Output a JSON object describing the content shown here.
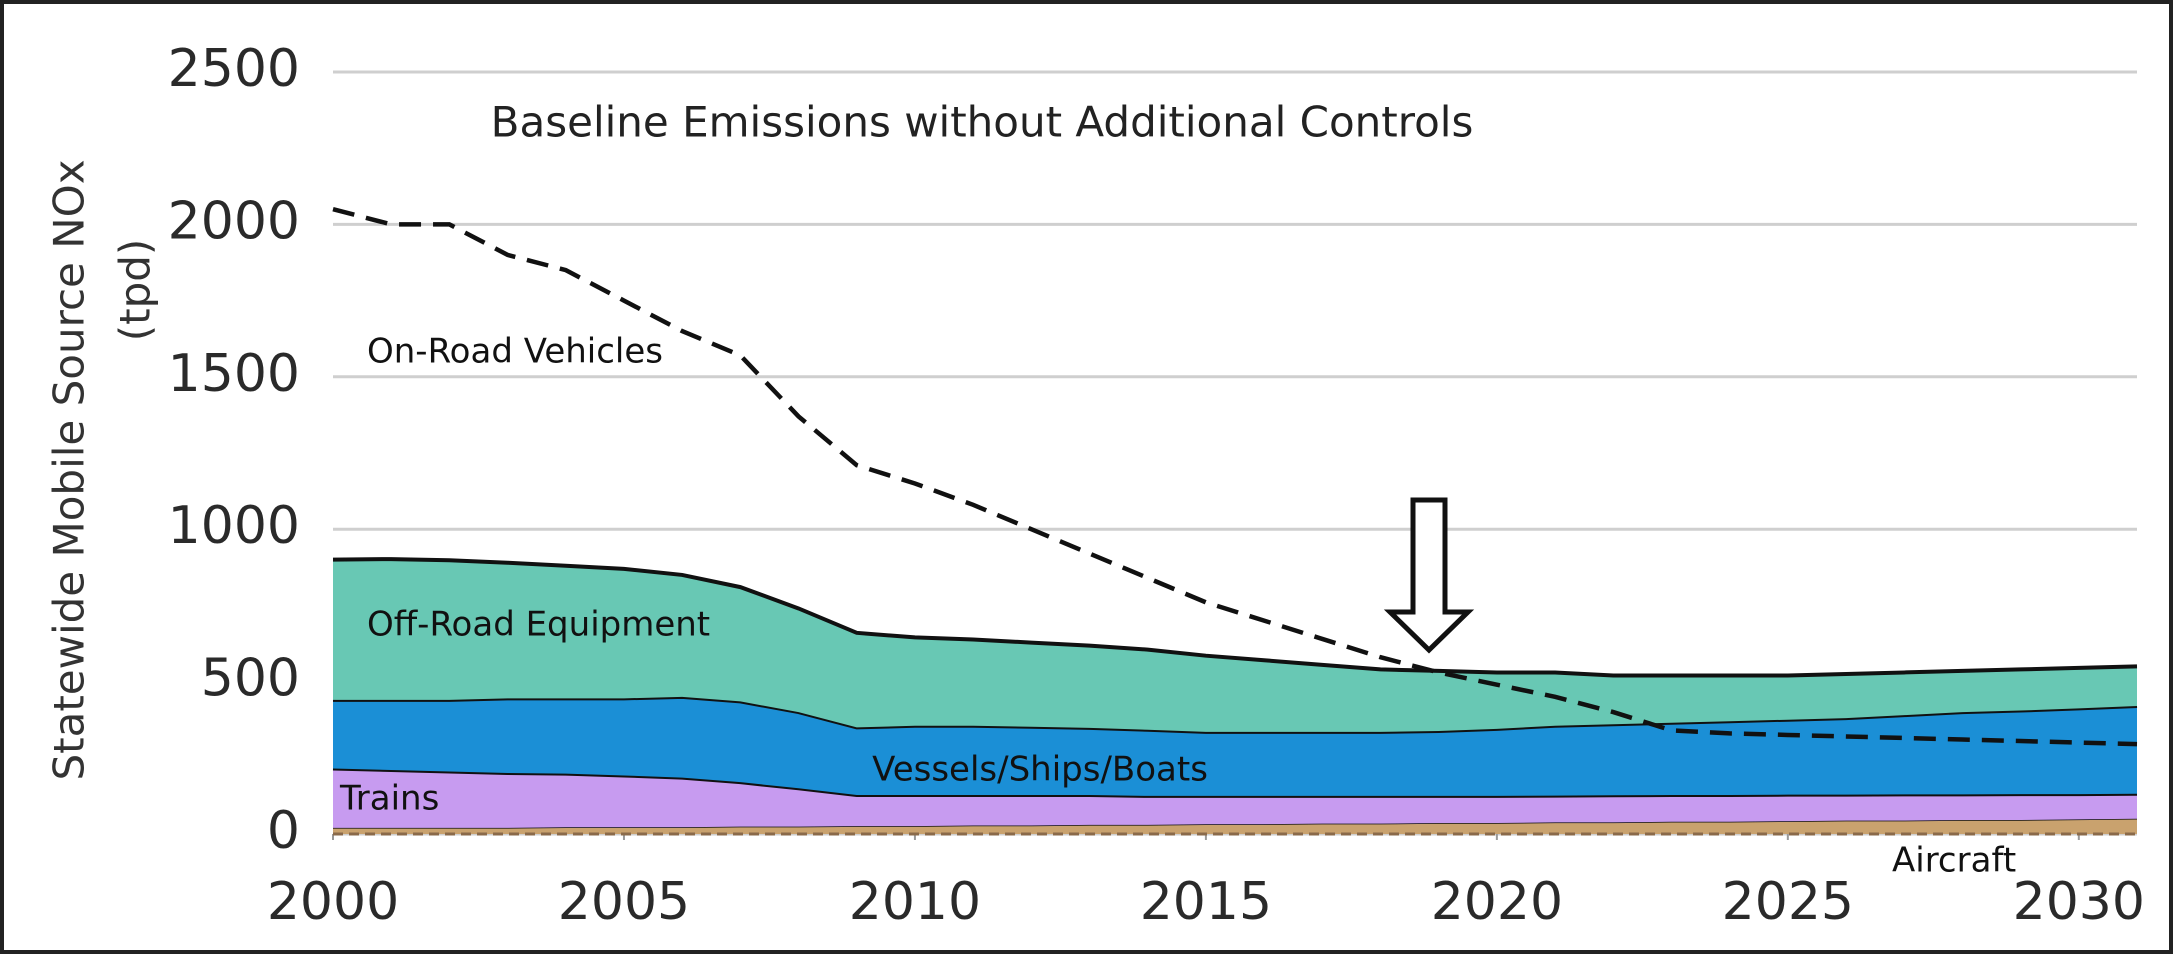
{
  "chart_data": {
    "type": "stacked-area",
    "title": "Baseline Emissions without Additional Controls",
    "y_label": [
      "Statewide Mobile Source NOx",
      "(tpd)"
    ],
    "x": [
      2000,
      2001,
      2002,
      2003,
      2004,
      2005,
      2006,
      2007,
      2008,
      2009,
      2010,
      2011,
      2012,
      2013,
      2014,
      2015,
      2016,
      2017,
      2018,
      2019,
      2020,
      2021,
      2022,
      2023,
      2024,
      2025,
      2026,
      2027,
      2028,
      2029,
      2030,
      2031
    ],
    "series": [
      {
        "name": "Aircraft",
        "type": "area",
        "color": "#c9a26e",
        "values": [
          20,
          20,
          20,
          20,
          22,
          22,
          22,
          24,
          24,
          26,
          26,
          28,
          28,
          30,
          30,
          32,
          32,
          34,
          34,
          36,
          36,
          38,
          38,
          40,
          40,
          42,
          44,
          44,
          46,
          46,
          48,
          50
        ]
      },
      {
        "name": "Trains",
        "type": "area",
        "color": "#c79bf0",
        "values": [
          195,
          190,
          185,
          180,
          176,
          170,
          163,
          146,
          126,
          102,
          102,
          100,
          100,
          98,
          95,
          93,
          93,
          91,
          91,
          89,
          89,
          88,
          89,
          88,
          88,
          87,
          85,
          86,
          84,
          85,
          83,
          82
        ]
      },
      {
        "name": "Vessels/Ships/Boats",
        "type": "area",
        "color": "#1b8fd6",
        "values": [
          225,
          230,
          235,
          245,
          247,
          253,
          265,
          265,
          250,
          222,
          227,
          227,
          224,
          220,
          217,
          210,
          210,
          210,
          210,
          213,
          220,
          229,
          233,
          237,
          242,
          246,
          251,
          260,
          270,
          274,
          281,
          288
        ]
      },
      {
        "name": "Off-Road Equipment",
        "type": "area",
        "color": "#68c8b4",
        "values": [
          460,
          462,
          458,
          445,
          435,
          425,
          400,
          375,
          340,
          310,
          290,
          283,
          276,
          270,
          263,
          250,
          235,
          220,
          205,
          197,
          185,
          175,
          160,
          155,
          150,
          145,
          145,
          140,
          135,
          135,
          133,
          130
        ]
      },
      {
        "name": "On-Road Vehicles",
        "type": "line",
        "color": "#111111",
        "values": [
          2050,
          2000,
          2000,
          1900,
          1850,
          1750,
          1650,
          1570,
          1370,
          1210,
          1150,
          1080,
          1000,
          920,
          840,
          760,
          700,
          640,
          580,
          530,
          490,
          450,
          400,
          340,
          330,
          325,
          320,
          315,
          310,
          305,
          300,
          295
        ]
      }
    ],
    "xlim": [
      2000,
      2031
    ],
    "xticks": [
      2000,
      2005,
      2010,
      2015,
      2020,
      2025,
      2030
    ],
    "ylim": [
      0,
      2500
    ],
    "yticks": [
      0,
      500,
      1000,
      1500,
      2000,
      2500
    ],
    "grid": true
  }
}
